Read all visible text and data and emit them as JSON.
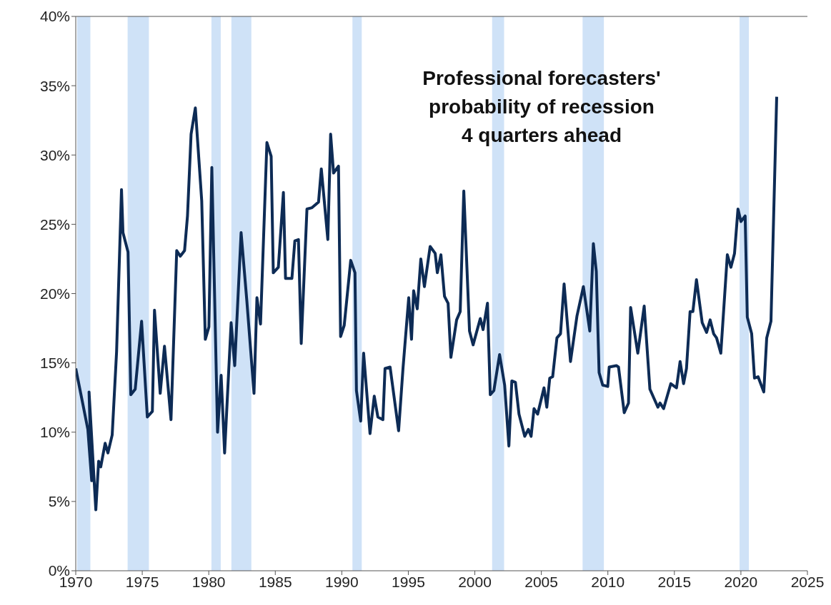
{
  "chart_data": {
    "type": "line",
    "title": "Professional forecasters'\nprobability of recession\n4 quarters ahead",
    "x": [
      1970.0,
      1970.54,
      1970.91,
      1971.2,
      1971.0,
      1971.51,
      1971.72,
      1971.88,
      1972.21,
      1972.42,
      1972.74,
      1973.07,
      1973.44,
      1973.55,
      1973.93,
      1974.14,
      1974.47,
      1974.95,
      1975.38,
      1975.76,
      1975.92,
      1976.35,
      1976.67,
      1977.16,
      1977.59,
      1977.86,
      1978.18,
      1978.4,
      1978.67,
      1978.99,
      1979.47,
      1979.74,
      1980.01,
      1980.23,
      1980.66,
      1980.93,
      1981.19,
      1981.68,
      1981.95,
      1982.43,
      1982.86,
      1983.4,
      1983.62,
      1983.89,
      1984.37,
      1984.69,
      1984.85,
      1985.23,
      1985.61,
      1985.77,
      1986.25,
      1986.47,
      1986.74,
      1986.95,
      1987.38,
      1987.76,
      1988.25,
      1988.46,
      1988.95,
      1989.16,
      1989.38,
      1989.75,
      1989.91,
      1990.18,
      1990.67,
      1990.99,
      1991.1,
      1991.42,
      1991.64,
      1992.12,
      1992.44,
      1992.71,
      1993.09,
      1993.25,
      1993.63,
      1994.27,
      1994.6,
      1995.03,
      1995.24,
      1995.4,
      1995.67,
      1995.94,
      1996.21,
      1996.64,
      1997.02,
      1997.18,
      1997.45,
      1997.72,
      1997.99,
      1998.2,
      1998.63,
      1998.9,
      1999.17,
      1999.6,
      1999.87,
      2000.41,
      2000.62,
      2000.95,
      2001.16,
      2001.43,
      2001.86,
      2002.24,
      2002.56,
      2002.78,
      2003.05,
      2003.32,
      2003.75,
      2004.02,
      2004.23,
      2004.45,
      2004.72,
      2005.2,
      2005.41,
      2005.63,
      2005.85,
      2006.17,
      2006.44,
      2006.71,
      2007.19,
      2007.68,
      2008.16,
      2008.64,
      2008.91,
      2009.13,
      2009.34,
      2009.61,
      2009.99,
      2010.1,
      2010.64,
      2010.8,
      2011.23,
      2011.55,
      2011.71,
      2012.25,
      2012.73,
      2013.16,
      2013.76,
      2013.92,
      2014.19,
      2014.73,
      2015.16,
      2015.43,
      2015.69,
      2015.91,
      2016.18,
      2016.39,
      2016.66,
      2017.09,
      2017.42,
      2017.69,
      2017.95,
      2018.17,
      2018.49,
      2018.98,
      2019.25,
      2019.52,
      2019.78,
      2020.0,
      2020.32,
      2020.48,
      2020.81,
      2021.02,
      2021.29,
      2021.72,
      2021.94,
      2022.26,
      2022.69
    ],
    "series": [
      {
        "color": "#0d2b55",
        "values": [
          14.6,
          12,
          10.2,
          6.5,
          12.9,
          4.4,
          7.9,
          7.5,
          9.2,
          8.5,
          9.8,
          15.8,
          27.5,
          24.4,
          23,
          12.7,
          13.1,
          18,
          11.1,
          11.5,
          18.8,
          12.8,
          16.2,
          10.9,
          23.1,
          22.7,
          23.1,
          25.6,
          31.5,
          33.4,
          26.7,
          16.7,
          17.6,
          29.1,
          10,
          14.1,
          8.5,
          17.9,
          14.8,
          24.4,
          19.5,
          12.8,
          19.7,
          17.8,
          30.9,
          29.9,
          21.5,
          21.9,
          27.3,
          21.1,
          21.1,
          23.8,
          23.9,
          16.4,
          26.1,
          26.2,
          26.6,
          29,
          23.9,
          31.5,
          28.7,
          29.2,
          16.9,
          17.7,
          22.4,
          21.5,
          13,
          10.8,
          15.7,
          9.9,
          12.6,
          11.1,
          10.9,
          14.6,
          14.7,
          10.1,
          14.6,
          19.7,
          16.7,
          20.2,
          18.9,
          22.5,
          20.5,
          23.4,
          22.9,
          21.5,
          22.8,
          19.8,
          19.3,
          15.4,
          18.1,
          18.7,
          27.4,
          17.3,
          16.3,
          18.2,
          17.4,
          19.3,
          12.7,
          13,
          15.6,
          13.4,
          9,
          13.7,
          13.6,
          11.3,
          9.7,
          10.2,
          9.7,
          11.7,
          11.3,
          13.2,
          11.8,
          13.9,
          14,
          16.8,
          17.1,
          20.7,
          15.1,
          18.4,
          20.5,
          17.3,
          23.6,
          21.6,
          14.3,
          13.4,
          13.3,
          14.7,
          14.8,
          14.7,
          11.4,
          12.1,
          19,
          15.7,
          19.1,
          13.1,
          11.8,
          12.1,
          11.7,
          13.5,
          13.2,
          15.1,
          13.5,
          14.6,
          18.7,
          18.7,
          21,
          17.9,
          17.2,
          18.1,
          17.1,
          16.8,
          15.7,
          22.8,
          21.9,
          22.9,
          26.1,
          25.2,
          25.6,
          18.3,
          17.1,
          13.9,
          14,
          12.9,
          16.8,
          18,
          34.2
        ]
      }
    ],
    "xlim": [
      1970,
      2025
    ],
    "xticks": [
      1970,
      1975,
      1980,
      1985,
      1990,
      1995,
      2000,
      2005,
      2010,
      2015,
      2020,
      2025
    ],
    "ylim": [
      0,
      40
    ],
    "yticks": [
      {
        "value": 0,
        "label": "0%"
      },
      {
        "value": 5,
        "label": "5%"
      },
      {
        "value": 10,
        "label": "10%"
      },
      {
        "value": 15,
        "label": "15%"
      },
      {
        "value": 20,
        "label": "20%"
      },
      {
        "value": 25,
        "label": "25%"
      },
      {
        "value": 30,
        "label": "30%"
      },
      {
        "value": 35,
        "label": "35%"
      },
      {
        "value": 40,
        "label": "40%"
      }
    ],
    "bands": [
      {
        "axis": "x",
        "from": 1970.1,
        "to": 1971.1,
        "color": "#cfe2f7"
      },
      {
        "axis": "x",
        "from": 1973.9,
        "to": 1975.5,
        "color": "#cfe2f7"
      },
      {
        "axis": "x",
        "from": 1980.2,
        "to": 1980.9,
        "color": "#cfe2f7"
      },
      {
        "axis": "x",
        "from": 1981.7,
        "to": 1983.2,
        "color": "#cfe2f7"
      },
      {
        "axis": "x",
        "from": 1990.8,
        "to": 1991.5,
        "color": "#cfe2f7"
      },
      {
        "axis": "x",
        "from": 2001.3,
        "to": 2002.2,
        "color": "#cfe2f7"
      },
      {
        "axis": "x",
        "from": 2008.1,
        "to": 2009.7,
        "color": "#cfe2f7"
      },
      {
        "axis": "x",
        "from": 2019.9,
        "to": 2020.6,
        "color": "#cfe2f7"
      }
    ],
    "grid": false,
    "legend": false,
    "marker": "none",
    "line_style": "solid"
  }
}
